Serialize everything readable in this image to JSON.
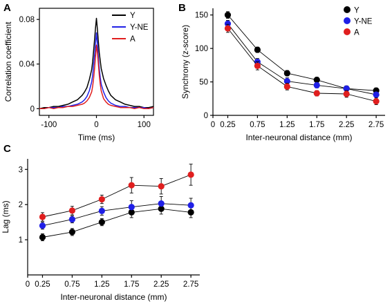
{
  "colors": {
    "Y": "#000000",
    "Y-NE": "#1f1fe6",
    "A": "#e01e1e"
  },
  "chart_data": [
    {
      "id": "A",
      "panel_label": "A",
      "type": "line",
      "xlabel": "Time (ms)",
      "ylabel": "Correlation coefficient",
      "xlim": [
        -120,
        120
      ],
      "ylim": [
        -0.006,
        0.09
      ],
      "xticks": [
        -100,
        0,
        100
      ],
      "yticks": [
        0,
        0.04,
        0.08
      ],
      "ytick_labels": [
        "0",
        "0.04",
        "0.08"
      ],
      "legend_position": "top-right",
      "series": [
        {
          "name": "Y",
          "color": "#000000",
          "x": [
            -120,
            -110,
            -100,
            -90,
            -80,
            -70,
            -60,
            -50,
            -40,
            -30,
            -25,
            -20,
            -15,
            -10,
            -8,
            -6,
            -4,
            -2,
            0,
            2,
            4,
            6,
            8,
            10,
            15,
            20,
            25,
            30,
            40,
            50,
            60,
            70,
            80,
            90,
            100,
            110,
            120
          ],
          "y": [
            0.0,
            0.001,
            0.001,
            0.002,
            0.002,
            0.003,
            0.004,
            0.006,
            0.008,
            0.012,
            0.015,
            0.019,
            0.026,
            0.035,
            0.042,
            0.052,
            0.062,
            0.072,
            0.081,
            0.071,
            0.06,
            0.05,
            0.043,
            0.036,
            0.027,
            0.021,
            0.016,
            0.012,
            0.008,
            0.006,
            0.004,
            0.003,
            0.002,
            0.002,
            0.001,
            0.001,
            0.002
          ]
        },
        {
          "name": "Y-NE",
          "color": "#1f1fe6",
          "x": [
            -120,
            -110,
            -100,
            -90,
            -80,
            -70,
            -60,
            -50,
            -40,
            -30,
            -25,
            -20,
            -15,
            -10,
            -8,
            -6,
            -4,
            -2,
            0,
            2,
            4,
            6,
            8,
            10,
            15,
            20,
            25,
            30,
            40,
            50,
            60,
            70,
            80,
            90,
            100,
            110,
            120
          ],
          "y": [
            0.0,
            0.0,
            0.001,
            0.001,
            0.001,
            0.002,
            0.002,
            0.003,
            0.004,
            0.006,
            0.008,
            0.011,
            0.016,
            0.024,
            0.03,
            0.039,
            0.048,
            0.058,
            0.068,
            0.058,
            0.046,
            0.036,
            0.028,
            0.022,
            0.015,
            0.01,
            0.007,
            0.005,
            0.003,
            0.002,
            0.002,
            0.001,
            0.001,
            0.001,
            0.001,
            0.0,
            0.001
          ]
        },
        {
          "name": "A",
          "color": "#e01e1e",
          "x": [
            -120,
            -110,
            -100,
            -90,
            -80,
            -70,
            -60,
            -50,
            -40,
            -30,
            -25,
            -20,
            -15,
            -10,
            -8,
            -6,
            -4,
            -2,
            0,
            2,
            4,
            6,
            8,
            10,
            15,
            20,
            25,
            30,
            40,
            50,
            60,
            70,
            80,
            90,
            100,
            110,
            120
          ],
          "y": [
            0.0,
            0.0,
            0.001,
            0.0,
            0.001,
            0.001,
            0.002,
            0.002,
            0.003,
            0.004,
            0.005,
            0.007,
            0.01,
            0.015,
            0.02,
            0.027,
            0.036,
            0.046,
            0.057,
            0.05,
            0.04,
            0.03,
            0.022,
            0.016,
            0.009,
            0.006,
            0.004,
            0.003,
            0.002,
            0.001,
            0.001,
            0.001,
            0.0,
            0.001,
            0.0,
            0.0,
            0.001
          ]
        }
      ]
    },
    {
      "id": "B",
      "panel_label": "B",
      "type": "scatter",
      "xlabel": "Inter-neuronal distance (mm)",
      "ylabel": "Synchrony (z-score)",
      "xlim": [
        0,
        2.9
      ],
      "ylim": [
        0,
        160
      ],
      "xticks": [
        0,
        0.25,
        0.75,
        1.25,
        1.75,
        2.25,
        2.75
      ],
      "xtick_labels": [
        "0",
        "0.25",
        "0.75",
        "1.25",
        "1.75",
        "2.25",
        "2.75"
      ],
      "yticks": [
        0,
        50,
        100,
        150
      ],
      "legend_position": "top-right",
      "x": [
        0.25,
        0.75,
        1.25,
        1.75,
        2.25,
        2.75
      ],
      "series": [
        {
          "name": "Y",
          "color": "#000000",
          "values": [
            150,
            98,
            63,
            53,
            40,
            37
          ],
          "errors": [
            5,
            4,
            4,
            4,
            4,
            4
          ]
        },
        {
          "name": "Y-NE",
          "color": "#1f1fe6",
          "values": [
            137,
            80,
            51,
            45,
            40,
            31
          ],
          "errors": [
            5,
            5,
            5,
            4,
            4,
            4
          ]
        },
        {
          "name": "A",
          "color": "#e01e1e",
          "values": [
            130,
            74,
            43,
            33,
            32,
            21
          ],
          "errors": [
            6,
            6,
            5,
            4,
            5,
            5
          ]
        }
      ]
    },
    {
      "id": "C",
      "panel_label": "C",
      "type": "scatter",
      "xlabel": "Inter-neuronal distance (mm)",
      "ylabel": "Lag (ms)",
      "xlim": [
        0,
        2.9
      ],
      "ylim": [
        0,
        3.3
      ],
      "xticks": [
        0,
        0.25,
        0.75,
        1.25,
        1.75,
        2.25,
        2.75
      ],
      "xtick_labels": [
        "0",
        "0.25",
        "0.75",
        "1.25",
        "1.75",
        "2.25",
        "2.75"
      ],
      "yticks": [
        1,
        2,
        3
      ],
      "x": [
        0.25,
        0.75,
        1.25,
        1.75,
        2.25,
        2.75
      ],
      "series": [
        {
          "name": "Y",
          "color": "#000000",
          "values": [
            1.07,
            1.22,
            1.5,
            1.78,
            1.88,
            1.78
          ],
          "errors": [
            0.1,
            0.1,
            0.1,
            0.15,
            0.15,
            0.15
          ]
        },
        {
          "name": "Y-NE",
          "color": "#1f1fe6",
          "values": [
            1.4,
            1.58,
            1.82,
            1.93,
            2.03,
            1.98
          ],
          "errors": [
            0.1,
            0.1,
            0.12,
            0.18,
            0.2,
            0.2
          ]
        },
        {
          "name": "A",
          "color": "#e01e1e",
          "values": [
            1.65,
            1.83,
            2.15,
            2.55,
            2.52,
            2.85
          ],
          "errors": [
            0.12,
            0.12,
            0.12,
            0.22,
            0.22,
            0.3
          ]
        }
      ]
    }
  ]
}
